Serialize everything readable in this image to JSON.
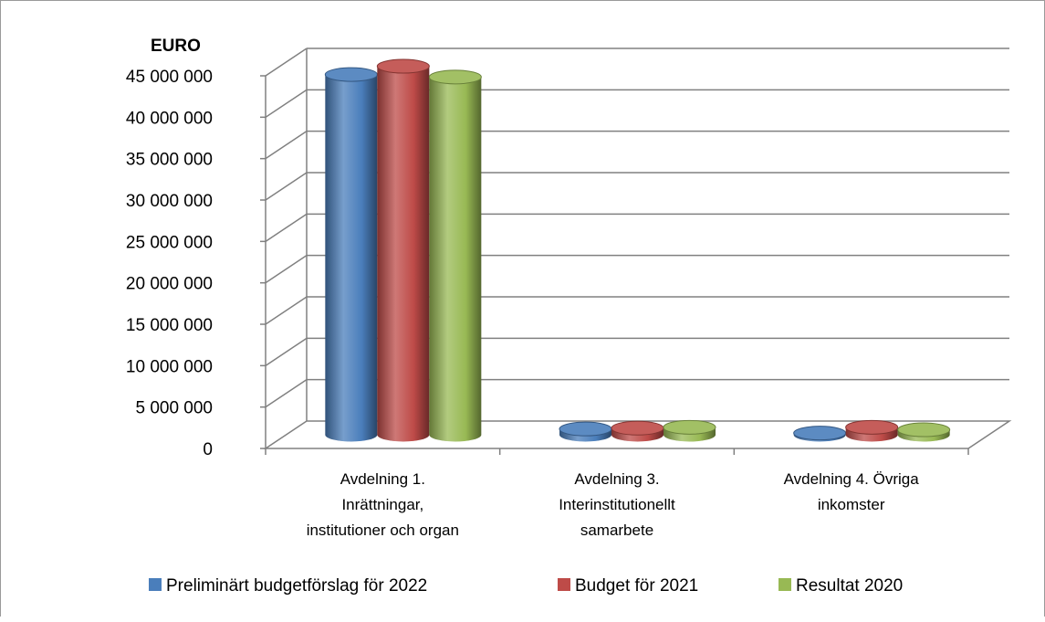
{
  "chart_data": {
    "type": "bar",
    "ylabel": "EURO",
    "categories": [
      [
        "Avdelning 1.",
        "Inrättningar,",
        "institutioner och organ"
      ],
      [
        "Avdelning 3.",
        "Interinstitutionellt",
        "samarbete"
      ],
      [
        "Avdelning 4. Övriga",
        "inkomster"
      ]
    ],
    "series": [
      {
        "name": "Preliminärt budgetförslag för 2022",
        "color": "#4a7ebb",
        "values": [
          43500000,
          700000,
          200000
        ]
      },
      {
        "name": "Budget för 2021",
        "color": "#be4b48",
        "values": [
          44500000,
          800000,
          900000
        ]
      },
      {
        "name": "Resultat 2020",
        "color": "#98b954",
        "values": [
          43200000,
          900000,
          600000
        ]
      }
    ],
    "ylim": [
      0,
      45000000
    ],
    "yticks": [
      "0",
      "5 000 000",
      "10 000 000",
      "15 000 000",
      "20 000 000",
      "25 000 000",
      "30 000 000",
      "35 000 000",
      "40 000 000",
      "45 000 000"
    ],
    "grid": true,
    "legend": "bottom"
  }
}
